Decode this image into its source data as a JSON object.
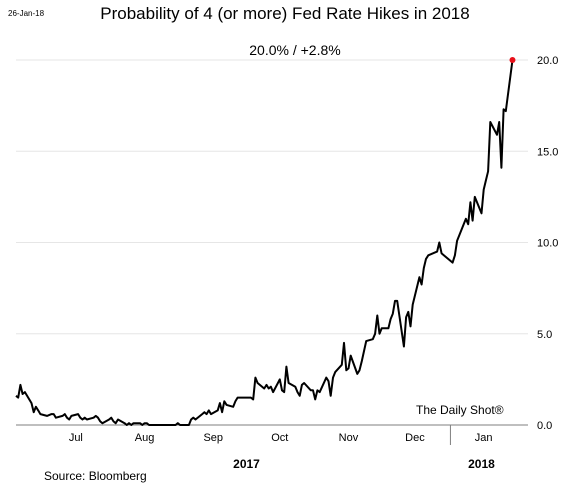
{
  "header": {
    "date_stamp": "26-Jan-18",
    "title": "Probability of 4 (or more) Fed Rate Hikes in 2018",
    "headline": "20.0%  /  +2.8%"
  },
  "footer": {
    "source": "Source: Bloomberg",
    "watermark": "The Daily Shot®"
  },
  "colors": {
    "line": "#000000",
    "gridline": "#e6e6e6",
    "axis": "#7f7f7f",
    "last_point": "#e8101a"
  },
  "chart_data": {
    "type": "line",
    "title": "Probability of 4 (or more) Fed Rate Hikes in 2018",
    "x_range": [
      "2017-06-19",
      "2018-02-05"
    ],
    "ylim": [
      0,
      20
    ],
    "y_ticks": [
      "0.0",
      "5.0",
      "10.0",
      "15.0",
      "20.0"
    ],
    "y_tick_values": [
      0,
      5,
      10,
      15,
      20
    ],
    "grid": true,
    "month_labels": [
      "Jul",
      "Aug",
      "Sep",
      "Oct",
      "Nov",
      "Dec",
      "Jan"
    ],
    "month_label_dates": [
      "2017-07-16",
      "2017-08-16",
      "2017-09-16",
      "2017-10-16",
      "2017-11-16",
      "2017-12-16",
      "2018-01-16"
    ],
    "year_labels": [
      {
        "label": "2017",
        "date": "2017-10-01"
      },
      {
        "label": "2018",
        "date": "2018-01-15"
      }
    ],
    "year_separator_date": "2018-01-01",
    "last_value_label": "20.0% / +2.8%",
    "series": [
      {
        "values": [
          [
            "2017-06-19",
            1.6
          ],
          [
            "2017-06-20",
            1.5
          ],
          [
            "2017-06-21",
            2.2
          ],
          [
            "2017-06-22",
            1.7
          ],
          [
            "2017-06-23",
            1.8
          ],
          [
            "2017-06-26",
            1.2
          ],
          [
            "2017-06-27",
            0.7
          ],
          [
            "2017-06-28",
            1.0
          ],
          [
            "2017-06-29",
            0.8
          ],
          [
            "2017-06-30",
            0.6
          ],
          [
            "2017-07-03",
            0.5
          ],
          [
            "2017-07-05",
            0.6
          ],
          [
            "2017-07-06",
            0.6
          ],
          [
            "2017-07-07",
            0.4
          ],
          [
            "2017-07-10",
            0.5
          ],
          [
            "2017-07-11",
            0.6
          ],
          [
            "2017-07-12",
            0.4
          ],
          [
            "2017-07-13",
            0.3
          ],
          [
            "2017-07-14",
            0.5
          ],
          [
            "2017-07-17",
            0.6
          ],
          [
            "2017-07-18",
            0.4
          ],
          [
            "2017-07-19",
            0.3
          ],
          [
            "2017-07-20",
            0.4
          ],
          [
            "2017-07-21",
            0.3
          ],
          [
            "2017-07-24",
            0.4
          ],
          [
            "2017-07-25",
            0.5
          ],
          [
            "2017-07-26",
            0.4
          ],
          [
            "2017-07-27",
            0.2
          ],
          [
            "2017-07-28",
            0.1
          ],
          [
            "2017-07-31",
            0.3
          ],
          [
            "2017-08-01",
            0.4
          ],
          [
            "2017-08-02",
            0.2
          ],
          [
            "2017-08-03",
            0.1
          ],
          [
            "2017-08-04",
            0.3
          ],
          [
            "2017-08-07",
            0.1
          ],
          [
            "2017-08-08",
            0.0
          ],
          [
            "2017-08-09",
            0.1
          ],
          [
            "2017-08-10",
            0.0
          ],
          [
            "2017-08-11",
            0.1
          ],
          [
            "2017-08-14",
            0.1
          ],
          [
            "2017-08-15",
            0.0
          ],
          [
            "2017-08-16",
            0.1
          ],
          [
            "2017-08-17",
            0.1
          ],
          [
            "2017-08-18",
            0.0
          ],
          [
            "2017-08-21",
            0.0
          ],
          [
            "2017-08-22",
            0.0
          ],
          [
            "2017-08-23",
            0.0
          ],
          [
            "2017-08-24",
            0.0
          ],
          [
            "2017-08-25",
            0.0
          ],
          [
            "2017-08-28",
            0.0
          ],
          [
            "2017-08-29",
            0.0
          ],
          [
            "2017-08-30",
            0.0
          ],
          [
            "2017-08-31",
            0.1
          ],
          [
            "2017-09-01",
            0.0
          ],
          [
            "2017-09-05",
            0.0
          ],
          [
            "2017-09-06",
            0.3
          ],
          [
            "2017-09-07",
            0.4
          ],
          [
            "2017-09-08",
            0.3
          ],
          [
            "2017-09-11",
            0.6
          ],
          [
            "2017-09-12",
            0.7
          ],
          [
            "2017-09-13",
            0.6
          ],
          [
            "2017-09-14",
            0.8
          ],
          [
            "2017-09-15",
            0.6
          ],
          [
            "2017-09-18",
            0.8
          ],
          [
            "2017-09-19",
            1.2
          ],
          [
            "2017-09-20",
            0.7
          ],
          [
            "2017-09-21",
            1.3
          ],
          [
            "2017-09-22",
            1.1
          ],
          [
            "2017-09-25",
            1.0
          ],
          [
            "2017-09-26",
            1.3
          ],
          [
            "2017-09-27",
            1.5
          ],
          [
            "2017-09-28",
            1.5
          ],
          [
            "2017-09-29",
            1.5
          ],
          [
            "2017-10-02",
            1.5
          ],
          [
            "2017-10-03",
            1.5
          ],
          [
            "2017-10-04",
            1.4
          ],
          [
            "2017-10-05",
            2.6
          ],
          [
            "2017-10-06",
            2.3
          ],
          [
            "2017-10-09",
            2.0
          ],
          [
            "2017-10-10",
            2.2
          ],
          [
            "2017-10-11",
            2.0
          ],
          [
            "2017-10-12",
            2.1
          ],
          [
            "2017-10-13",
            1.8
          ],
          [
            "2017-10-16",
            2.5
          ],
          [
            "2017-10-17",
            1.9
          ],
          [
            "2017-10-18",
            1.8
          ],
          [
            "2017-10-19",
            3.2
          ],
          [
            "2017-10-20",
            2.3
          ],
          [
            "2017-10-23",
            2.1
          ],
          [
            "2017-10-24",
            1.8
          ],
          [
            "2017-10-25",
            1.6
          ],
          [
            "2017-10-26",
            2.2
          ],
          [
            "2017-10-27",
            2.3
          ],
          [
            "2017-10-30",
            1.9
          ],
          [
            "2017-10-31",
            1.9
          ],
          [
            "2017-11-01",
            1.4
          ],
          [
            "2017-11-02",
            1.9
          ],
          [
            "2017-11-03",
            1.8
          ],
          [
            "2017-11-06",
            2.6
          ],
          [
            "2017-11-07",
            2.4
          ],
          [
            "2017-11-08",
            1.6
          ],
          [
            "2017-11-09",
            2.6
          ],
          [
            "2017-11-10",
            2.9
          ],
          [
            "2017-11-13",
            3.3
          ],
          [
            "2017-11-14",
            4.5
          ],
          [
            "2017-11-15",
            3.0
          ],
          [
            "2017-11-16",
            3.1
          ],
          [
            "2017-11-17",
            3.8
          ],
          [
            "2017-11-20",
            2.8
          ],
          [
            "2017-11-21",
            3.0
          ],
          [
            "2017-11-22",
            3.5
          ],
          [
            "2017-11-24",
            4.6
          ],
          [
            "2017-11-27",
            4.7
          ],
          [
            "2017-11-28",
            5.0
          ],
          [
            "2017-11-29",
            6.0
          ],
          [
            "2017-11-30",
            5.0
          ],
          [
            "2017-12-01",
            5.3
          ],
          [
            "2017-12-04",
            5.3
          ],
          [
            "2017-12-05",
            5.8
          ],
          [
            "2017-12-06",
            6.1
          ],
          [
            "2017-12-07",
            6.8
          ],
          [
            "2017-12-08",
            6.8
          ],
          [
            "2017-12-11",
            4.3
          ],
          [
            "2017-12-12",
            5.9
          ],
          [
            "2017-12-13",
            6.2
          ],
          [
            "2017-12-14",
            5.4
          ],
          [
            "2017-12-15",
            6.6
          ],
          [
            "2017-12-18",
            8.1
          ],
          [
            "2017-12-19",
            7.7
          ],
          [
            "2017-12-20",
            8.6
          ],
          [
            "2017-12-21",
            9.1
          ],
          [
            "2017-12-22",
            9.3
          ],
          [
            "2017-12-26",
            9.5
          ],
          [
            "2017-12-27",
            10.0
          ],
          [
            "2017-12-28",
            9.4
          ],
          [
            "2017-12-29",
            9.3
          ],
          [
            "2018-01-02",
            8.9
          ],
          [
            "2018-01-03",
            9.3
          ],
          [
            "2018-01-04",
            10.1
          ],
          [
            "2018-01-05",
            10.4
          ],
          [
            "2018-01-08",
            11.3
          ],
          [
            "2018-01-09",
            11.0
          ],
          [
            "2018-01-10",
            12.2
          ],
          [
            "2018-01-11",
            11.2
          ],
          [
            "2018-01-12",
            12.5
          ],
          [
            "2018-01-15",
            11.6
          ],
          [
            "2018-01-16",
            12.9
          ],
          [
            "2018-01-17",
            13.4
          ],
          [
            "2018-01-18",
            13.9
          ],
          [
            "2018-01-19",
            16.6
          ],
          [
            "2018-01-22",
            15.9
          ],
          [
            "2018-01-23",
            16.6
          ],
          [
            "2018-01-24",
            14.1
          ],
          [
            "2018-01-25",
            17.3
          ],
          [
            "2018-01-26",
            17.2
          ],
          [
            "2018-01-29",
            20.0
          ]
        ]
      }
    ]
  }
}
